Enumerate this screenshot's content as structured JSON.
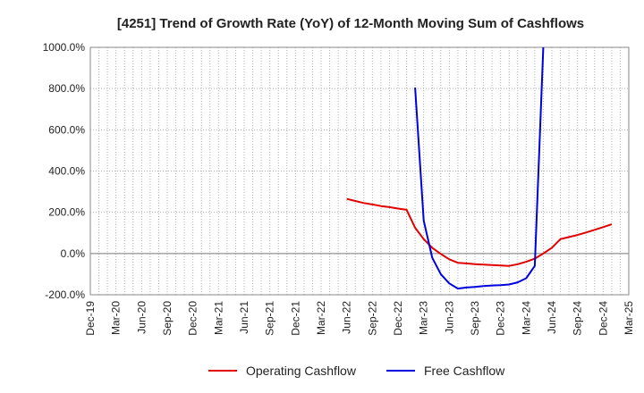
{
  "chart_data": {
    "type": "line",
    "title": "[4251]  Trend of Growth Rate (YoY) of 12-Month Moving Sum of Cashflows",
    "xlabel": "",
    "ylabel": "",
    "x_ticks": [
      "Dec-19",
      "Mar-20",
      "Jun-20",
      "Sep-20",
      "Dec-20",
      "Mar-21",
      "Jun-21",
      "Sep-21",
      "Dec-21",
      "Mar-22",
      "Jun-22",
      "Sep-22",
      "Dec-22",
      "Mar-23",
      "Jun-23",
      "Sep-23",
      "Dec-23",
      "Mar-24",
      "Jun-24",
      "Sep-24",
      "Dec-24",
      "Mar-25"
    ],
    "y_ticks": [
      "1000.0%",
      "800.0%",
      "600.0%",
      "400.0%",
      "200.0%",
      "0.0%",
      "-200.0%"
    ],
    "ylim": [
      -200,
      1000
    ],
    "grid": true,
    "legend_position": "bottom",
    "series": [
      {
        "name": "Operating Cashflow",
        "color": "#e00000",
        "points": [
          [
            "Jun-22",
            265
          ],
          [
            "Jul-22",
            255
          ],
          [
            "Aug-22",
            245
          ],
          [
            "Sep-22",
            238
          ],
          [
            "Oct-22",
            230
          ],
          [
            "Nov-22",
            225
          ],
          [
            "Dec-22",
            218
          ],
          [
            "Jan-23",
            212
          ],
          [
            "Feb-23",
            125
          ],
          [
            "Mar-23",
            70
          ],
          [
            "Apr-23",
            28
          ],
          [
            "May-23",
            -2
          ],
          [
            "Jun-23",
            -28
          ],
          [
            "Jul-23",
            -45
          ],
          [
            "Aug-23",
            -48
          ],
          [
            "Sep-23",
            -52
          ],
          [
            "Oct-23",
            -54
          ],
          [
            "Nov-23",
            -56
          ],
          [
            "Dec-23",
            -58
          ],
          [
            "Jan-24",
            -60
          ],
          [
            "Feb-24",
            -52
          ],
          [
            "Mar-24",
            -40
          ],
          [
            "Apr-24",
            -25
          ],
          [
            "May-24",
            0
          ],
          [
            "Jun-24",
            28
          ],
          [
            "Jul-24",
            70
          ],
          [
            "Aug-24",
            80
          ],
          [
            "Sep-24",
            90
          ],
          [
            "Oct-24",
            102
          ],
          [
            "Nov-24",
            115
          ],
          [
            "Dec-24",
            128
          ],
          [
            "Jan-25",
            142
          ]
        ]
      },
      {
        "name": "Free Cashflow",
        "color": "#0000dd",
        "points": [
          [
            "Feb-23",
            805
          ],
          [
            "Mar-23",
            160
          ],
          [
            "Apr-23",
            -20
          ],
          [
            "May-23",
            -100
          ],
          [
            "Jun-23",
            -145
          ],
          [
            "Jul-23",
            -170
          ],
          [
            "Aug-23",
            -165
          ],
          [
            "Sep-23",
            -162
          ],
          [
            "Oct-23",
            -158
          ],
          [
            "Nov-23",
            -155
          ],
          [
            "Dec-23",
            -153
          ],
          [
            "Jan-24",
            -150
          ],
          [
            "Feb-24",
            -140
          ],
          [
            "Mar-24",
            -120
          ],
          [
            "Apr-24",
            -60
          ],
          [
            "May-24",
            1000
          ]
        ]
      }
    ]
  }
}
